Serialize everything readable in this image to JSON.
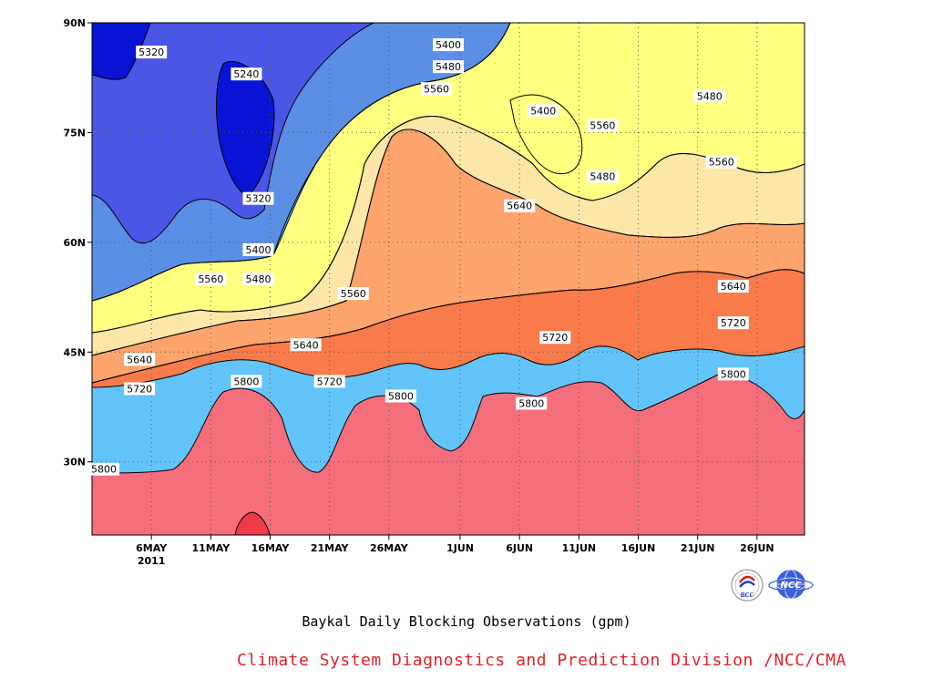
{
  "chart_data": {
    "type": "heatmap",
    "subtype": "filled-contour (Hovmöller: date vs latitude)",
    "variable_units": "gpm",
    "x_axis": {
      "ticks": [
        "6MAY",
        "11MAY",
        "16MAY",
        "21MAY",
        "26MAY",
        "1JUN",
        "6JUN",
        "11JUN",
        "16JUN",
        "21JUN",
        "26JUN"
      ],
      "year_label": "2011",
      "range": [
        "2011-05-01",
        "2011-06-30"
      ]
    },
    "y_axis": {
      "ticks": [
        "30N",
        "45N",
        "60N",
        "75N",
        "90N"
      ],
      "tick_values": [
        30,
        45,
        60,
        75,
        90
      ],
      "range": [
        20,
        90
      ]
    },
    "grid": "dotted",
    "contour_levels": [
      5240,
      5320,
      5400,
      5480,
      5560,
      5640,
      5720,
      5800
    ],
    "fill_colors": [
      "#0a14d6",
      "#4b56e6",
      "#5b8fe6",
      "#62c4f8",
      "#ffff80",
      "#fde7a8",
      "#fca46c",
      "#f97a4a",
      "#f56e7c",
      "#ef3a48"
    ],
    "contour_labels": [
      {
        "value": "5320",
        "date": "2011-05-06",
        "lat": 86
      },
      {
        "value": "5240",
        "date": "2011-05-14",
        "lat": 83
      },
      {
        "value": "5320",
        "date": "2011-05-15",
        "lat": 66
      },
      {
        "value": "5400",
        "date": "2011-05-15",
        "lat": 59
      },
      {
        "value": "5480",
        "date": "2011-05-15",
        "lat": 55
      },
      {
        "value": "5560",
        "date": "2011-05-11",
        "lat": 55
      },
      {
        "value": "5560",
        "date": "2011-05-23",
        "lat": 53
      },
      {
        "value": "5640",
        "date": "2011-05-05",
        "lat": 44
      },
      {
        "value": "5640",
        "date": "2011-05-19",
        "lat": 46
      },
      {
        "value": "5720",
        "date": "2011-05-05",
        "lat": 40
      },
      {
        "value": "5720",
        "date": "2011-05-21",
        "lat": 41
      },
      {
        "value": "5800",
        "date": "2011-05-02",
        "lat": 29
      },
      {
        "value": "5800",
        "date": "2011-05-14",
        "lat": 41
      },
      {
        "value": "5800",
        "date": "2011-05-27",
        "lat": 39
      },
      {
        "value": "5400",
        "date": "2011-05-31",
        "lat": 87
      },
      {
        "value": "5480",
        "date": "2011-05-31",
        "lat": 84
      },
      {
        "value": "5560",
        "date": "2011-05-30",
        "lat": 81
      },
      {
        "value": "5400",
        "date": "2011-06-08",
        "lat": 78
      },
      {
        "value": "5560",
        "date": "2011-06-13",
        "lat": 76
      },
      {
        "value": "5480",
        "date": "2011-06-13",
        "lat": 69
      },
      {
        "value": "5480",
        "date": "2011-06-22",
        "lat": 80
      },
      {
        "value": "5560",
        "date": "2011-06-23",
        "lat": 71
      },
      {
        "value": "5640",
        "date": "2011-06-06",
        "lat": 65
      },
      {
        "value": "5640",
        "date": "2011-06-24",
        "lat": 54
      },
      {
        "value": "5720",
        "date": "2011-06-09",
        "lat": 47
      },
      {
        "value": "5720",
        "date": "2011-06-24",
        "lat": 49
      },
      {
        "value": "5800",
        "date": "2011-06-07",
        "lat": 38
      },
      {
        "value": "5800",
        "date": "2011-06-24",
        "lat": 42
      }
    ]
  },
  "title": "Baykal Daily Blocking Observations (gpm)",
  "credit": "Climate System Diagnostics and Prediction Division /NCC/CMA",
  "logos": [
    {
      "name": "BCC",
      "icon": "bcc-logo-icon",
      "text": "BCC"
    },
    {
      "name": "NCC",
      "icon": "ncc-logo-icon",
      "text": "NCC"
    }
  ]
}
